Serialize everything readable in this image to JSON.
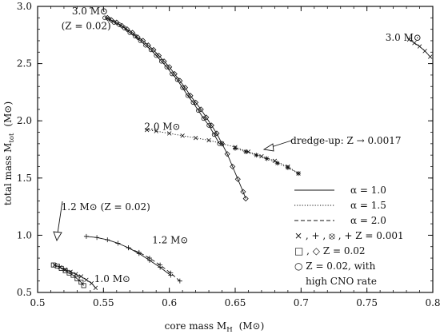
{
  "chart_data": {
    "type": "line",
    "xlabel": "core mass  M",
    "xlabel_sub": "H",
    "xlabel_unit": "(M⊙)",
    "ylabel": "total mass  M",
    "ylabel_sub": "tot",
    "ylabel_unit": "(M⊙)",
    "xlim": [
      0.5,
      0.8
    ],
    "ylim": [
      0.5,
      3.0
    ],
    "x_ticks": [
      0.5,
      0.55,
      0.6,
      0.65,
      0.7,
      0.75,
      0.8
    ],
    "x_tick_labels": [
      "0.5",
      "0.55",
      "0.6",
      "0.65",
      "0.7",
      "0.75",
      "0.8"
    ],
    "y_ticks": [
      0.5,
      1.0,
      1.5,
      2.0,
      2.5,
      3.0
    ],
    "y_tick_labels": [
      "0.5",
      "1.0",
      "1.5",
      "2.0",
      "2.5",
      "3.0"
    ],
    "grid": false,
    "legend_position": "bottom-right",
    "legend": [
      {
        "label": "α = 1.0",
        "style": "solid"
      },
      {
        "label": "α = 1.5",
        "style": "dotted"
      },
      {
        "label": "α = 2.0",
        "style": "dashed"
      },
      {
        "label": "× , + , ⦻ , +  Z = 0.001",
        "style": "none"
      },
      {
        "label": "□ , ◇  Z = 0.02",
        "style": "none"
      },
      {
        "label": "○  Z = 0.02, with",
        "style": "none"
      },
      {
        "label": "high CNO rate",
        "style": "none"
      }
    ],
    "annotations": [
      {
        "text": "3.0 M⊙",
        "at": [
          0.526,
          2.93
        ]
      },
      {
        "text": "(Z = 0.02)",
        "at": [
          0.518,
          2.8
        ]
      },
      {
        "text": "3.0 M⊙",
        "at": [
          0.764,
          2.7
        ]
      },
      {
        "text": "2.0 M⊙",
        "at": [
          0.581,
          1.92
        ]
      },
      {
        "text": "dredge-up: Z → 0.0017",
        "at": [
          0.692,
          1.8
        ]
      },
      {
        "text": "1.2 M⊙ (Z = 0.02)",
        "at": [
          0.518,
          1.22
        ]
      },
      {
        "text": "1.2 M⊙",
        "at": [
          0.587,
          0.93
        ]
      },
      {
        "text": "1.0 M⊙",
        "at": [
          0.543,
          0.59
        ]
      }
    ],
    "series": [
      {
        "marker": "diamond",
        "line": "solid",
        "x": [
          0.553,
          0.556,
          0.56,
          0.564,
          0.568,
          0.572,
          0.576,
          0.58,
          0.584,
          0.588,
          0.592,
          0.596,
          0.6,
          0.604,
          0.608,
          0.612,
          0.616,
          0.62,
          0.624,
          0.628,
          0.632,
          0.636,
          0.64,
          0.644,
          0.648,
          0.652,
          0.656,
          0.658
        ],
        "y": [
          2.9,
          2.88,
          2.86,
          2.83,
          2.8,
          2.77,
          2.73,
          2.7,
          2.66,
          2.62,
          2.57,
          2.52,
          2.47,
          2.41,
          2.35,
          2.29,
          2.22,
          2.16,
          2.1,
          2.03,
          1.96,
          1.89,
          1.8,
          1.71,
          1.6,
          1.49,
          1.38,
          1.32
        ]
      },
      {
        "marker": "circle",
        "line": "solid",
        "x": [
          0.551,
          0.554,
          0.558,
          0.562,
          0.566,
          0.57,
          0.574,
          0.578,
          0.582,
          0.586,
          0.59,
          0.594,
          0.598,
          0.602,
          0.606,
          0.61,
          0.614,
          0.618,
          0.622,
          0.626,
          0.63,
          0.634,
          0.638
        ],
        "y": [
          2.9,
          2.89,
          2.86,
          2.84,
          2.81,
          2.77,
          2.74,
          2.7,
          2.66,
          2.62,
          2.57,
          2.52,
          2.47,
          2.41,
          2.36,
          2.29,
          2.22,
          2.16,
          2.09,
          2.02,
          1.96,
          1.88,
          1.8
        ]
      },
      {
        "marker": "cross",
        "line": "dotted",
        "x": [
          0.583,
          0.59,
          0.6,
          0.61,
          0.62,
          0.63,
          0.64,
          0.65,
          0.66,
          0.67,
          0.68,
          0.69,
          0.698
        ],
        "y": [
          1.92,
          1.91,
          1.89,
          1.87,
          1.85,
          1.83,
          1.8,
          1.77,
          1.73,
          1.69,
          1.65,
          1.6,
          1.54
        ]
      },
      {
        "marker": "star",
        "line": "dotted",
        "x": [
          0.65,
          0.658,
          0.666,
          0.674,
          0.682,
          0.69,
          0.698
        ],
        "y": [
          1.76,
          1.73,
          1.7,
          1.67,
          1.63,
          1.59,
          1.54
        ]
      },
      {
        "marker": "cross",
        "line": "solid",
        "x": [
          0.782,
          0.786,
          0.79,
          0.794,
          0.798
        ],
        "y": [
          2.71,
          2.68,
          2.65,
          2.61,
          2.56
        ]
      },
      {
        "marker": "plus",
        "line": "solid",
        "x": [
          0.537,
          0.545,
          0.553,
          0.561,
          0.569,
          0.577,
          0.585,
          0.593,
          0.601
        ],
        "y": [
          0.99,
          0.98,
          0.96,
          0.93,
          0.89,
          0.84,
          0.78,
          0.72,
          0.65
        ]
      },
      {
        "marker": "plus",
        "line": "dashed",
        "x": [
          0.569,
          0.577,
          0.585,
          0.593,
          0.601,
          0.608
        ],
        "y": [
          0.89,
          0.85,
          0.8,
          0.74,
          0.67,
          0.6
        ]
      },
      {
        "marker": "square",
        "line": "solid",
        "x": [
          0.512,
          0.515,
          0.518,
          0.521,
          0.524,
          0.527,
          0.53,
          0.533,
          0.535
        ],
        "y": [
          0.74,
          0.73,
          0.71,
          0.69,
          0.67,
          0.65,
          0.62,
          0.59,
          0.56
        ]
      },
      {
        "marker": "cross",
        "line": "solid",
        "x": [
          0.513,
          0.517,
          0.521,
          0.525,
          0.529,
          0.533,
          0.537,
          0.541,
          0.544
        ],
        "y": [
          0.74,
          0.72,
          0.7,
          0.68,
          0.66,
          0.64,
          0.61,
          0.58,
          0.54
        ]
      }
    ]
  }
}
